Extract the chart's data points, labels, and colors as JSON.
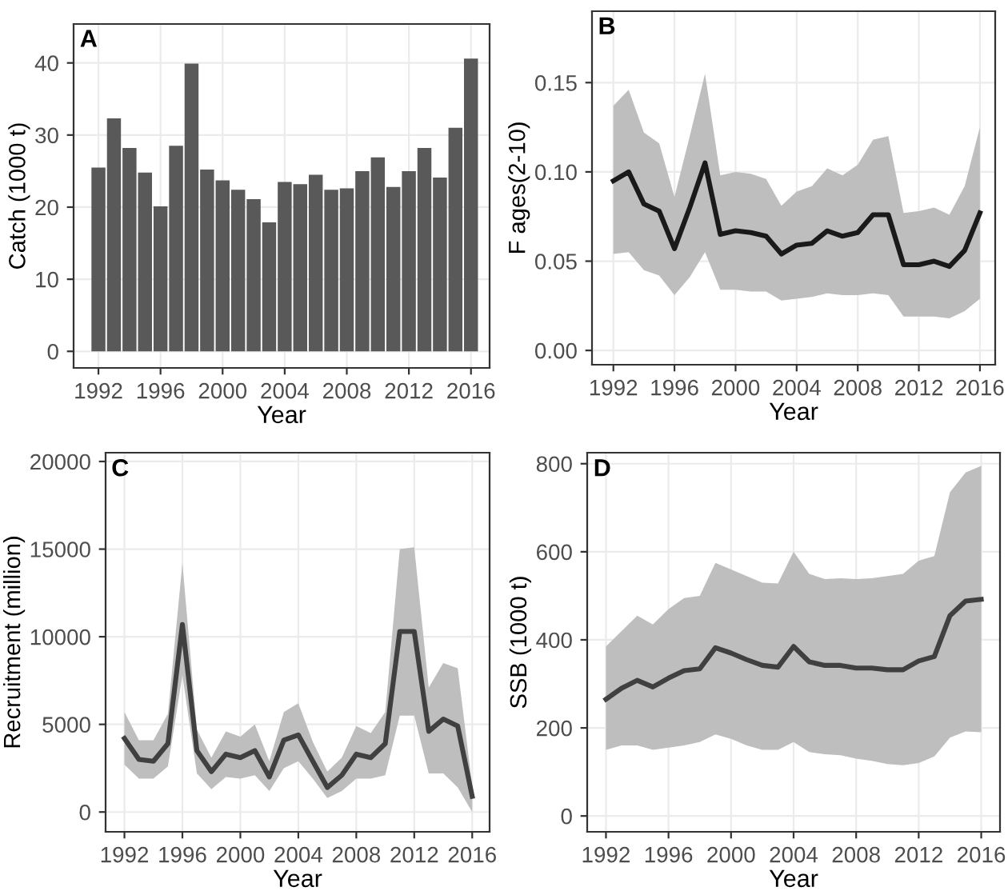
{
  "chart_data": [
    {
      "type": "bar",
      "annotations": [
        "A"
      ],
      "xlabel": "Year",
      "ylabel": "Catch (1000 t)",
      "x": [
        1992,
        1993,
        1994,
        1995,
        1996,
        1997,
        1998,
        1999,
        2000,
        2001,
        2002,
        2003,
        2004,
        2005,
        2006,
        2007,
        2008,
        2009,
        2010,
        2011,
        2012,
        2013,
        2014,
        2015,
        2016
      ],
      "series": [
        {
          "color": "#595959",
          "values": [
            25.5,
            32.3,
            28.2,
            24.8,
            20.1,
            28.5,
            39.9,
            25.2,
            23.7,
            22.4,
            21.1,
            17.9,
            23.5,
            23.2,
            24.5,
            22.4,
            22.6,
            25.0,
            26.9,
            22.8,
            25.0,
            28.2,
            24.1,
            31.0,
            40.6
          ]
        }
      ],
      "xlim": [
        1990.4,
        2017.2
      ],
      "xticks": [
        1992,
        1996,
        2000,
        2004,
        2008,
        2012,
        2016
      ],
      "ylim": [
        -2.3,
        45.4
      ],
      "yticks": [
        0,
        10,
        20,
        30,
        40
      ],
      "grid": true
    },
    {
      "type": "line",
      "annotations": [
        "B"
      ],
      "xlabel": "Year",
      "ylabel": "F ages(2-10)",
      "x": [
        1992,
        1993,
        1994,
        1995,
        1996,
        1997,
        1998,
        1999,
        2000,
        2001,
        2002,
        2003,
        2004,
        2005,
        2006,
        2007,
        2008,
        2009,
        2010,
        2011,
        2012,
        2013,
        2014,
        2015,
        2016
      ],
      "series": [
        {
          "color": "#1a1a1a",
          "values": [
            0.095,
            0.1,
            0.082,
            0.078,
            0.057,
            0.08,
            0.105,
            0.065,
            0.067,
            0.066,
            0.064,
            0.054,
            0.059,
            0.06,
            0.067,
            0.064,
            0.066,
            0.076,
            0.076,
            0.048,
            0.048,
            0.05,
            0.047,
            0.056,
            0.077
          ],
          "upper": [
            0.137,
            0.146,
            0.122,
            0.116,
            0.086,
            0.12,
            0.155,
            0.098,
            0.1,
            0.099,
            0.096,
            0.081,
            0.089,
            0.092,
            0.102,
            0.098,
            0.104,
            0.118,
            0.12,
            0.077,
            0.078,
            0.08,
            0.076,
            0.092,
            0.125
          ],
          "lower": [
            0.054,
            0.055,
            0.045,
            0.042,
            0.031,
            0.041,
            0.055,
            0.034,
            0.034,
            0.033,
            0.033,
            0.028,
            0.029,
            0.03,
            0.032,
            0.031,
            0.031,
            0.032,
            0.031,
            0.019,
            0.019,
            0.019,
            0.018,
            0.022,
            0.029
          ]
        }
      ],
      "xlim": [
        1990.6,
        2017.0
      ],
      "xticks": [
        1992,
        1996,
        2000,
        2004,
        2008,
        2012,
        2016
      ],
      "ylim": [
        -0.008,
        0.19
      ],
      "yticks": [
        {
          "value": 0,
          "label": "0.00"
        },
        0.05,
        {
          "value": 0.1,
          "label": "0.10"
        },
        0.15
      ],
      "grid": true,
      "line_style": "solid"
    },
    {
      "type": "line",
      "annotations": [
        "C"
      ],
      "xlabel": "Year",
      "ylabel": "Recruitment (million)",
      "x": [
        1992,
        1993,
        1994,
        1995,
        1996,
        1997,
        1998,
        1999,
        2000,
        2001,
        2002,
        2003,
        2004,
        2005,
        2006,
        2007,
        2008,
        2009,
        2010,
        2011,
        2012,
        2013,
        2014,
        2015,
        2016
      ],
      "series": [
        {
          "color": "#404040",
          "values": [
            4200,
            3000,
            2900,
            3900,
            10700,
            3500,
            2300,
            3300,
            3100,
            3500,
            2000,
            4100,
            4400,
            2900,
            1400,
            2100,
            3300,
            3100,
            3900,
            10300,
            10300,
            4600,
            5300,
            4900,
            900
          ],
          "upper": [
            5700,
            4100,
            4100,
            5600,
            14200,
            4700,
            3100,
            4600,
            4300,
            5000,
            2900,
            5700,
            6200,
            4000,
            2300,
            3100,
            4900,
            4500,
            5700,
            15000,
            15100,
            7100,
            8500,
            8200,
            1500
          ],
          "lower": [
            2700,
            1900,
            1900,
            2600,
            7800,
            2200,
            1300,
            2000,
            1900,
            2100,
            1200,
            2500,
            2900,
            1900,
            800,
            1200,
            1900,
            1900,
            2100,
            5500,
            5500,
            2200,
            2200,
            1400,
            0
          ]
        }
      ],
      "xlim": [
        1990.7,
        2017.2
      ],
      "xticks": [
        1992,
        1996,
        2000,
        2004,
        2008,
        2012,
        2016
      ],
      "ylim": [
        -1130,
        20500
      ],
      "yticks": [
        0,
        5000,
        10000,
        15000,
        20000
      ],
      "grid": true,
      "line_style": "solid"
    },
    {
      "type": "line",
      "annotations": [
        "D"
      ],
      "xlabel": "Year",
      "ylabel": "SSB (1000 t)",
      "x": [
        1992,
        1993,
        1994,
        1995,
        1996,
        1997,
        1998,
        1999,
        2000,
        2001,
        2002,
        2003,
        2004,
        2005,
        2006,
        2007,
        2008,
        2009,
        2010,
        2011,
        2012,
        2013,
        2014,
        2015,
        2016
      ],
      "series": [
        {
          "color": "#404040",
          "values": [
            265,
            290,
            308,
            293,
            313,
            330,
            334,
            382,
            370,
            355,
            342,
            338,
            385,
            350,
            342,
            342,
            336,
            336,
            332,
            332,
            352,
            362,
            455,
            488,
            492
          ],
          "upper": [
            385,
            420,
            455,
            435,
            470,
            495,
            500,
            575,
            560,
            545,
            530,
            528,
            600,
            550,
            538,
            540,
            538,
            540,
            545,
            550,
            580,
            590,
            735,
            780,
            795
          ],
          "lower": [
            150,
            160,
            160,
            150,
            155,
            160,
            168,
            185,
            175,
            160,
            150,
            150,
            168,
            145,
            140,
            138,
            130,
            125,
            118,
            115,
            120,
            135,
            178,
            192,
            190
          ]
        }
      ],
      "xlim": [
        1990.8,
        2017.2
      ],
      "xticks": [
        1992,
        1996,
        2000,
        2004,
        2008,
        2012,
        2016
      ],
      "ylim": [
        -36,
        825
      ],
      "yticks": [
        0,
        200,
        400,
        600,
        800
      ],
      "grid": true,
      "line_style": "solid"
    }
  ]
}
